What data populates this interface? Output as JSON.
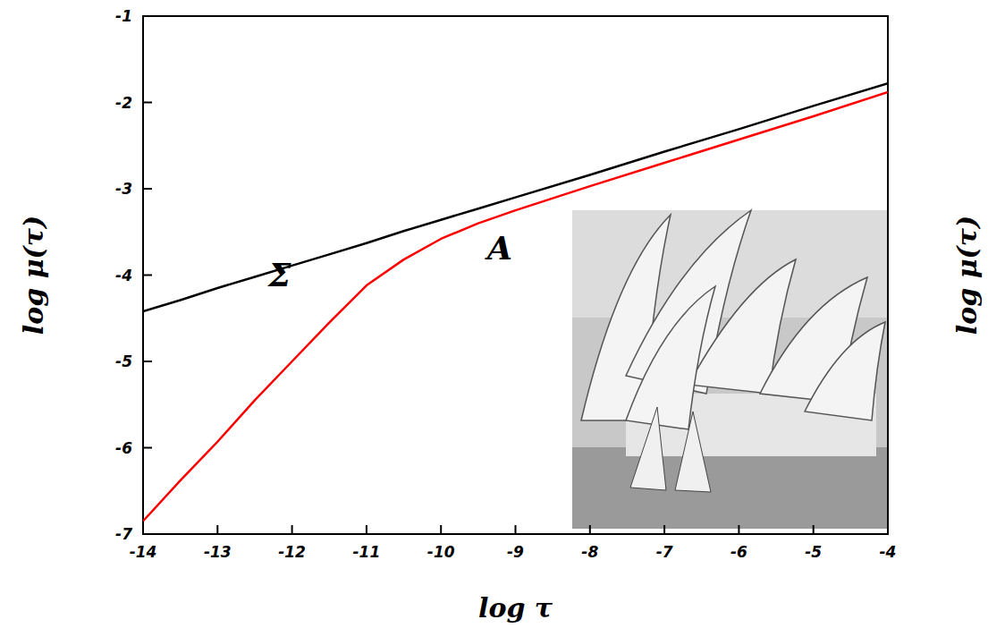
{
  "chart_data": {
    "type": "line",
    "x_label": "log τ",
    "y_label": "log μ(τ)",
    "annotations": [
      "log μ(τ)"
    ],
    "x": [
      -14,
      -13.5,
      -13,
      -12.5,
      -12,
      -11.5,
      -11,
      -10.5,
      -10,
      -9.5,
      -9,
      -8,
      -7,
      -6,
      -5,
      -4
    ],
    "series": [
      {
        "name": "Σ",
        "color": "#000000",
        "values": [
          -4.42,
          -4.29,
          -4.15,
          -4.02,
          -3.89,
          -3.76,
          -3.63,
          -3.49,
          -3.36,
          -3.23,
          -3.1,
          -2.84,
          -2.57,
          -2.31,
          -2.04,
          -1.78
        ]
      },
      {
        "name": "A",
        "color": "#ff0000",
        "values": [
          -6.85,
          -6.38,
          -5.93,
          -5.45,
          -5.0,
          -4.55,
          -4.12,
          -3.82,
          -3.58,
          -3.4,
          -3.25,
          -2.97,
          -2.7,
          -2.43,
          -2.16,
          -1.88
        ]
      }
    ],
    "xlim": [
      -14,
      -4
    ],
    "ylim": [
      -7,
      -1
    ],
    "xticks": [
      -14,
      -13,
      -12,
      -11,
      -10,
      -9,
      -8,
      -7,
      -6,
      -5,
      -4
    ],
    "yticks": [
      -7,
      -6,
      -5,
      -4,
      -3,
      -2,
      -1
    ],
    "grid": false
  }
}
